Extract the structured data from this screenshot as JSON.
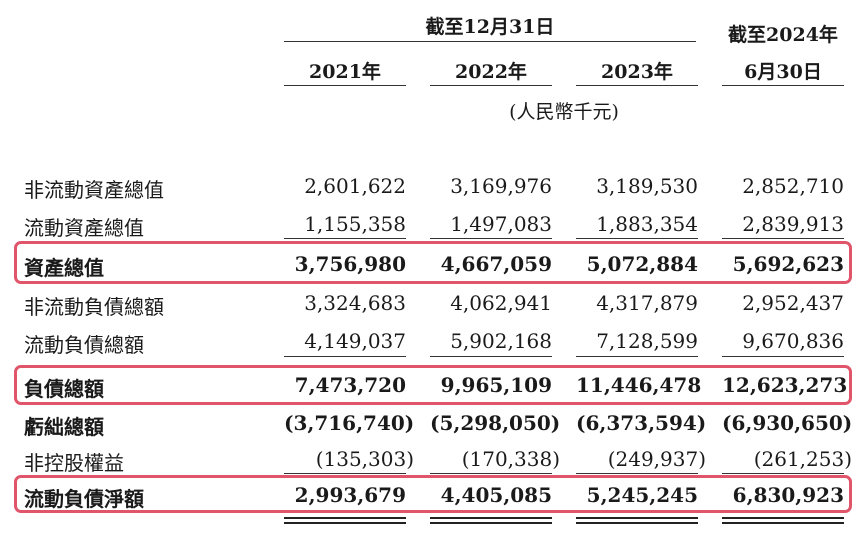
{
  "header": {
    "group_label": "截至12月31日",
    "cols": [
      "2021年",
      "2022年",
      "2023年"
    ],
    "last_col_line1": "截至2024年",
    "last_col_line2": "6月30日",
    "unit": "(人民幣千元)"
  },
  "rows": [
    {
      "label": "非流動資產總值",
      "values": [
        "2,601,622",
        "3,169,976",
        "3,189,530",
        "2,852,710"
      ]
    },
    {
      "label": "流動資產總值",
      "values": [
        "1,155,358",
        "1,497,083",
        "1,883,354",
        "2,839,913"
      ]
    },
    {
      "label": "資產總值",
      "values": [
        "3,756,980",
        "4,667,059",
        "5,072,884",
        "5,692,623"
      ]
    },
    {
      "label": "非流動負債總額",
      "values": [
        "3,324,683",
        "4,062,941",
        "4,317,879",
        "2,952,437"
      ]
    },
    {
      "label": "流動負債總額",
      "values": [
        "4,149,037",
        "5,902,168",
        "7,128,599",
        "9,670,836"
      ]
    },
    {
      "label": "負債總額",
      "values": [
        "7,473,720",
        "9,965,109",
        "11,446,478",
        "12,623,273"
      ]
    },
    {
      "label": "虧絀總額",
      "values": [
        "(3,716,740)",
        "(5,298,050)",
        "(6,373,594)",
        "(6,930,650)"
      ]
    },
    {
      "label": "非控股權益",
      "values": [
        "(135,303)",
        "(170,338)",
        "(249,937)",
        "(261,253)"
      ]
    },
    {
      "label": "流動負債淨額",
      "values": [
        "2,993,679",
        "4,405,085",
        "5,245,245",
        "6,830,923"
      ]
    }
  ],
  "highlight_color": "#e0556a"
}
